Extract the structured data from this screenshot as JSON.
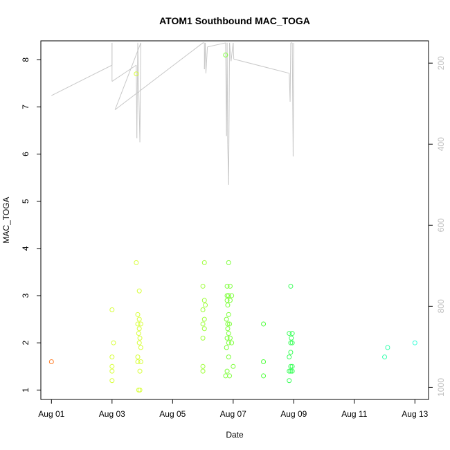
{
  "chart_data": {
    "type": "scatter",
    "title": "ATOM1 Southbound MAC_TOGA",
    "xlabel": "Date",
    "ylabel": "MAC_TOGA",
    "x_ticks": [
      "Aug 01",
      "Aug 03",
      "Aug 05",
      "Aug 07",
      "Aug 09",
      "Aug 11",
      "Aug 13"
    ],
    "x_tick_days": [
      1,
      3,
      5,
      7,
      9,
      11,
      13
    ],
    "xlim_days": [
      0.65,
      13.45
    ],
    "y_ticks": [
      1,
      2,
      3,
      4,
      5,
      6,
      7,
      8
    ],
    "ylim": [
      0.8,
      8.4
    ],
    "y2_ticks": [
      200,
      400,
      600,
      800,
      1000
    ],
    "y2_lim": [
      1030,
      145
    ],
    "grid": false,
    "points": [
      {
        "day": 1.0,
        "y": 1.6,
        "color": "#ff7f2a"
      },
      {
        "day": 3.0,
        "y": 2.7,
        "color": "#d8ff3a"
      },
      {
        "day": 3.05,
        "y": 2.0,
        "color": "#d8ff3a"
      },
      {
        "day": 3.0,
        "y": 1.7,
        "color": "#d8ff3a"
      },
      {
        "day": 3.0,
        "y": 1.5,
        "color": "#d8ff3a"
      },
      {
        "day": 3.0,
        "y": 1.4,
        "color": "#d8ff3a"
      },
      {
        "day": 3.0,
        "y": 1.2,
        "color": "#d8ff3a"
      },
      {
        "day": 3.8,
        "y": 7.7,
        "color": "#d8ff3a"
      },
      {
        "day": 3.8,
        "y": 3.7,
        "color": "#d8ff3a"
      },
      {
        "day": 3.9,
        "y": 3.1,
        "color": "#d8ff3a"
      },
      {
        "day": 3.85,
        "y": 2.6,
        "color": "#d8ff3a"
      },
      {
        "day": 3.9,
        "y": 2.5,
        "color": "#d8ff3a"
      },
      {
        "day": 3.85,
        "y": 2.4,
        "color": "#d8ff3a"
      },
      {
        "day": 3.95,
        "y": 2.4,
        "color": "#d8ff3a"
      },
      {
        "day": 3.9,
        "y": 2.3,
        "color": "#d8ff3a"
      },
      {
        "day": 3.88,
        "y": 2.2,
        "color": "#d8ff3a"
      },
      {
        "day": 3.92,
        "y": 2.1,
        "color": "#d8ff3a"
      },
      {
        "day": 3.9,
        "y": 2.0,
        "color": "#d8ff3a"
      },
      {
        "day": 3.95,
        "y": 1.9,
        "color": "#d8ff3a"
      },
      {
        "day": 3.85,
        "y": 1.7,
        "color": "#d8ff3a"
      },
      {
        "day": 3.85,
        "y": 1.6,
        "color": "#d8ff3a"
      },
      {
        "day": 3.95,
        "y": 1.6,
        "color": "#d8ff3a"
      },
      {
        "day": 3.92,
        "y": 1.4,
        "color": "#d8ff3a"
      },
      {
        "day": 3.88,
        "y": 1.0,
        "color": "#d8ff3a"
      },
      {
        "day": 3.92,
        "y": 1.0,
        "color": "#d8ff3a"
      },
      {
        "day": 6.05,
        "y": 3.7,
        "color": "#9eff3a"
      },
      {
        "day": 6.0,
        "y": 3.2,
        "color": "#9eff3a"
      },
      {
        "day": 6.05,
        "y": 2.9,
        "color": "#9eff3a"
      },
      {
        "day": 6.08,
        "y": 2.8,
        "color": "#9eff3a"
      },
      {
        "day": 6.0,
        "y": 2.7,
        "color": "#9eff3a"
      },
      {
        "day": 6.05,
        "y": 2.5,
        "color": "#9eff3a"
      },
      {
        "day": 6.0,
        "y": 2.4,
        "color": "#9eff3a"
      },
      {
        "day": 6.05,
        "y": 2.3,
        "color": "#9eff3a"
      },
      {
        "day": 6.0,
        "y": 2.1,
        "color": "#9eff3a"
      },
      {
        "day": 6.0,
        "y": 1.5,
        "color": "#9eff3a"
      },
      {
        "day": 6.0,
        "y": 1.4,
        "color": "#9eff3a"
      },
      {
        "day": 6.75,
        "y": 8.1,
        "color": "#7dff3a"
      },
      {
        "day": 6.85,
        "y": 3.7,
        "color": "#7dff3a"
      },
      {
        "day": 6.8,
        "y": 3.2,
        "color": "#7dff3a"
      },
      {
        "day": 6.9,
        "y": 3.2,
        "color": "#7dff3a"
      },
      {
        "day": 6.8,
        "y": 3.0,
        "color": "#7dff3a"
      },
      {
        "day": 6.85,
        "y": 3.0,
        "color": "#7dff3a"
      },
      {
        "day": 6.95,
        "y": 3.0,
        "color": "#7dff3a"
      },
      {
        "day": 6.8,
        "y": 2.9,
        "color": "#7dff3a"
      },
      {
        "day": 6.9,
        "y": 2.9,
        "color": "#7dff3a"
      },
      {
        "day": 6.82,
        "y": 2.8,
        "color": "#7dff3a"
      },
      {
        "day": 6.85,
        "y": 2.6,
        "color": "#7dff3a"
      },
      {
        "day": 6.78,
        "y": 2.5,
        "color": "#7dff3a"
      },
      {
        "day": 6.82,
        "y": 2.4,
        "color": "#7dff3a"
      },
      {
        "day": 6.88,
        "y": 2.4,
        "color": "#7dff3a"
      },
      {
        "day": 6.82,
        "y": 2.3,
        "color": "#7dff3a"
      },
      {
        "day": 6.85,
        "y": 2.2,
        "color": "#7dff3a"
      },
      {
        "day": 6.8,
        "y": 2.1,
        "color": "#7dff3a"
      },
      {
        "day": 6.9,
        "y": 2.1,
        "color": "#7dff3a"
      },
      {
        "day": 6.85,
        "y": 2.0,
        "color": "#7dff3a"
      },
      {
        "day": 6.95,
        "y": 2.0,
        "color": "#7dff3a"
      },
      {
        "day": 6.78,
        "y": 1.9,
        "color": "#7dff3a"
      },
      {
        "day": 6.85,
        "y": 1.7,
        "color": "#7dff3a"
      },
      {
        "day": 7.0,
        "y": 1.5,
        "color": "#7dff3a"
      },
      {
        "day": 6.8,
        "y": 1.4,
        "color": "#7dff3a"
      },
      {
        "day": 6.75,
        "y": 1.3,
        "color": "#7dff3a"
      },
      {
        "day": 6.88,
        "y": 1.3,
        "color": "#7dff3a"
      },
      {
        "day": 8.0,
        "y": 2.4,
        "color": "#4dff3a"
      },
      {
        "day": 8.0,
        "y": 1.6,
        "color": "#4dff3a"
      },
      {
        "day": 8.0,
        "y": 1.3,
        "color": "#4dff3a"
      },
      {
        "day": 8.9,
        "y": 3.2,
        "color": "#3aff5a"
      },
      {
        "day": 8.85,
        "y": 2.2,
        "color": "#3aff5a"
      },
      {
        "day": 8.95,
        "y": 2.2,
        "color": "#3aff5a"
      },
      {
        "day": 8.92,
        "y": 2.1,
        "color": "#3aff5a"
      },
      {
        "day": 8.9,
        "y": 2.0,
        "color": "#3aff5a"
      },
      {
        "day": 8.95,
        "y": 2.0,
        "color": "#3aff5a"
      },
      {
        "day": 8.9,
        "y": 1.8,
        "color": "#3aff5a"
      },
      {
        "day": 8.85,
        "y": 1.7,
        "color": "#3aff5a"
      },
      {
        "day": 8.9,
        "y": 1.5,
        "color": "#3aff5a"
      },
      {
        "day": 8.95,
        "y": 1.5,
        "color": "#3aff5a"
      },
      {
        "day": 8.85,
        "y": 1.4,
        "color": "#3aff5a"
      },
      {
        "day": 8.9,
        "y": 1.4,
        "color": "#3aff5a"
      },
      {
        "day": 8.95,
        "y": 1.4,
        "color": "#3aff5a"
      },
      {
        "day": 8.85,
        "y": 1.2,
        "color": "#3aff5a"
      },
      {
        "day": 12.1,
        "y": 1.9,
        "color": "#3affb0"
      },
      {
        "day": 12.0,
        "y": 1.7,
        "color": "#3affb0"
      },
      {
        "day": 13.0,
        "y": 2.0,
        "color": "#3affd8"
      }
    ],
    "secondary_line": {
      "color": "#c8c8c8",
      "points": [
        {
          "day": 1.0,
          "y2": 280
        },
        {
          "day": 3.0,
          "y2": 205
        },
        {
          "day": 3.0,
          "y2": 150
        },
        {
          "day": 3.0,
          "y2": 245
        },
        {
          "day": 3.8,
          "y2": 205
        },
        {
          "day": 3.82,
          "y2": 385
        },
        {
          "day": 3.85,
          "y2": 150
        },
        {
          "day": 3.92,
          "y2": 395
        },
        {
          "day": 3.95,
          "y2": 150
        },
        {
          "day": 3.1,
          "y2": 315
        },
        {
          "day": 6.0,
          "y2": 150
        },
        {
          "day": 6.05,
          "y2": 150
        },
        {
          "day": 6.05,
          "y2": 215
        },
        {
          "day": 6.08,
          "y2": 150
        },
        {
          "day": 6.1,
          "y2": 225
        },
        {
          "day": 6.15,
          "y2": 160
        },
        {
          "day": 6.75,
          "y2": 150
        },
        {
          "day": 6.78,
          "y2": 380
        },
        {
          "day": 6.8,
          "y2": 150
        },
        {
          "day": 6.82,
          "y2": 400
        },
        {
          "day": 6.85,
          "y2": 500
        },
        {
          "day": 6.88,
          "y2": 150
        },
        {
          "day": 6.9,
          "y2": 170
        },
        {
          "day": 6.93,
          "y2": 195
        },
        {
          "day": 7.0,
          "y2": 150
        },
        {
          "day": 7.02,
          "y2": 190
        },
        {
          "day": 8.85,
          "y2": 225
        },
        {
          "day": 8.88,
          "y2": 295
        },
        {
          "day": 8.9,
          "y2": 150
        },
        {
          "day": 8.95,
          "y2": 150
        },
        {
          "day": 8.98,
          "y2": 430
        },
        {
          "day": 9.0,
          "y2": 150
        }
      ]
    }
  }
}
